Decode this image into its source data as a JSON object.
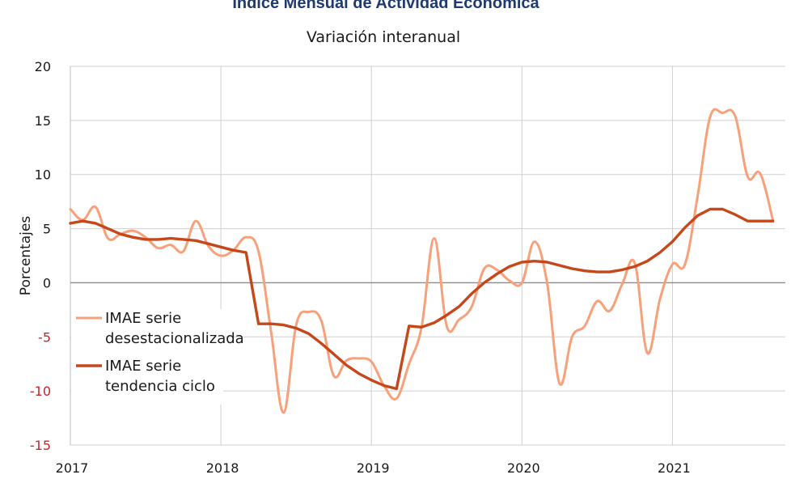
{
  "chart_data": {
    "type": "line",
    "title": "Índice Mensual de  Actividad Económica",
    "subtitle": "Variación interanual",
    "ylabel": "Porcentajes",
    "xlabel": "",
    "ylim": [
      -15,
      20
    ],
    "yticks": [
      "20",
      "15",
      "10",
      "5",
      "0",
      "-5",
      "-10",
      "-15"
    ],
    "yticks_values": [
      20,
      15,
      10,
      5,
      0,
      -5,
      -10,
      -15
    ],
    "xlim": [
      2017,
      2021.75
    ],
    "xticks": [
      "2017",
      "2018",
      "2019",
      "2020",
      "2021"
    ],
    "grid": true,
    "legend_position": "bottom-left",
    "series": [
      {
        "name": "IMAE serie desestacionalizada",
        "legend_lines": [
          "IMAE serie",
          "desestacionalizada"
        ],
        "color": "#f7a07a",
        "x": [
          2017.0,
          2017.083,
          2017.167,
          2017.25,
          2017.333,
          2017.417,
          2017.5,
          2017.583,
          2017.667,
          2017.75,
          2017.833,
          2017.917,
          2018.0,
          2018.083,
          2018.167,
          2018.25,
          2018.333,
          2018.417,
          2018.5,
          2018.583,
          2018.667,
          2018.75,
          2018.833,
          2018.917,
          2019.0,
          2019.083,
          2019.167,
          2019.25,
          2019.333,
          2019.417,
          2019.5,
          2019.583,
          2019.667,
          2019.75,
          2019.833,
          2019.917,
          2020.0,
          2020.083,
          2020.167,
          2020.25,
          2020.333,
          2020.417,
          2020.5,
          2020.583,
          2020.667,
          2020.75,
          2020.833,
          2020.917,
          2021.0,
          2021.083,
          2021.167,
          2021.25,
          2021.333,
          2021.417,
          2021.5,
          2021.583,
          2021.667
        ],
        "y": [
          6.8,
          5.8,
          7.0,
          4.1,
          4.5,
          4.8,
          4.2,
          3.2,
          3.5,
          2.9,
          5.7,
          3.4,
          2.5,
          3.0,
          4.2,
          2.9,
          -4.5,
          -12.0,
          -3.9,
          -2.7,
          -3.5,
          -8.6,
          -7.2,
          -7.0,
          -7.3,
          -9.5,
          -10.7,
          -7.5,
          -4.1,
          4.1,
          -4.0,
          -3.4,
          -2.2,
          1.3,
          1.2,
          0.2,
          0.0,
          3.8,
          0.0,
          -9.3,
          -5.0,
          -4.0,
          -1.7,
          -2.6,
          -0.1,
          1.8,
          -6.5,
          -1.5,
          1.7,
          1.7,
          8.0,
          15.3,
          15.7,
          15.4,
          9.8,
          10.1,
          5.8
        ]
      },
      {
        "name": "IMAE serie tendencia ciclo",
        "legend_lines": [
          "IMAE serie",
          "tendencia ciclo"
        ],
        "color": "#c5471a",
        "x": [
          2017.0,
          2017.083,
          2017.167,
          2017.25,
          2017.333,
          2017.417,
          2017.5,
          2017.583,
          2017.667,
          2017.75,
          2017.833,
          2017.917,
          2018.0,
          2018.083,
          2018.167,
          2018.25,
          2018.333,
          2018.417,
          2018.5,
          2018.583,
          2018.667,
          2018.75,
          2018.833,
          2018.917,
          2019.0,
          2019.083,
          2019.167,
          2019.25,
          2019.333,
          2019.417,
          2019.5,
          2019.583,
          2019.667,
          2019.75,
          2019.833,
          2019.917,
          2020.0,
          2020.083,
          2020.167,
          2020.25,
          2020.333,
          2020.417,
          2020.5,
          2020.583,
          2020.667,
          2020.75,
          2020.833,
          2020.917,
          2021.0,
          2021.083,
          2021.167,
          2021.25,
          2021.333,
          2021.417,
          2021.5,
          2021.583,
          2021.667
        ],
        "y": [
          5.5,
          5.7,
          5.5,
          5.0,
          4.5,
          4.2,
          4.0,
          4.0,
          4.1,
          4.0,
          3.9,
          3.6,
          3.3,
          3.0,
          2.8,
          -3.8,
          -3.8,
          -3.9,
          -4.2,
          -4.7,
          -5.6,
          -6.6,
          -7.6,
          -8.4,
          -9.0,
          -9.5,
          -9.8,
          -4.0,
          -4.1,
          -3.7,
          -3.0,
          -2.2,
          -1.0,
          0.0,
          0.8,
          1.5,
          1.9,
          2.0,
          1.9,
          1.6,
          1.3,
          1.1,
          1.0,
          1.0,
          1.2,
          1.5,
          2.0,
          2.8,
          3.8,
          5.1,
          6.2,
          6.8,
          6.8,
          6.3,
          5.7,
          5.7,
          5.7
        ]
      }
    ]
  }
}
